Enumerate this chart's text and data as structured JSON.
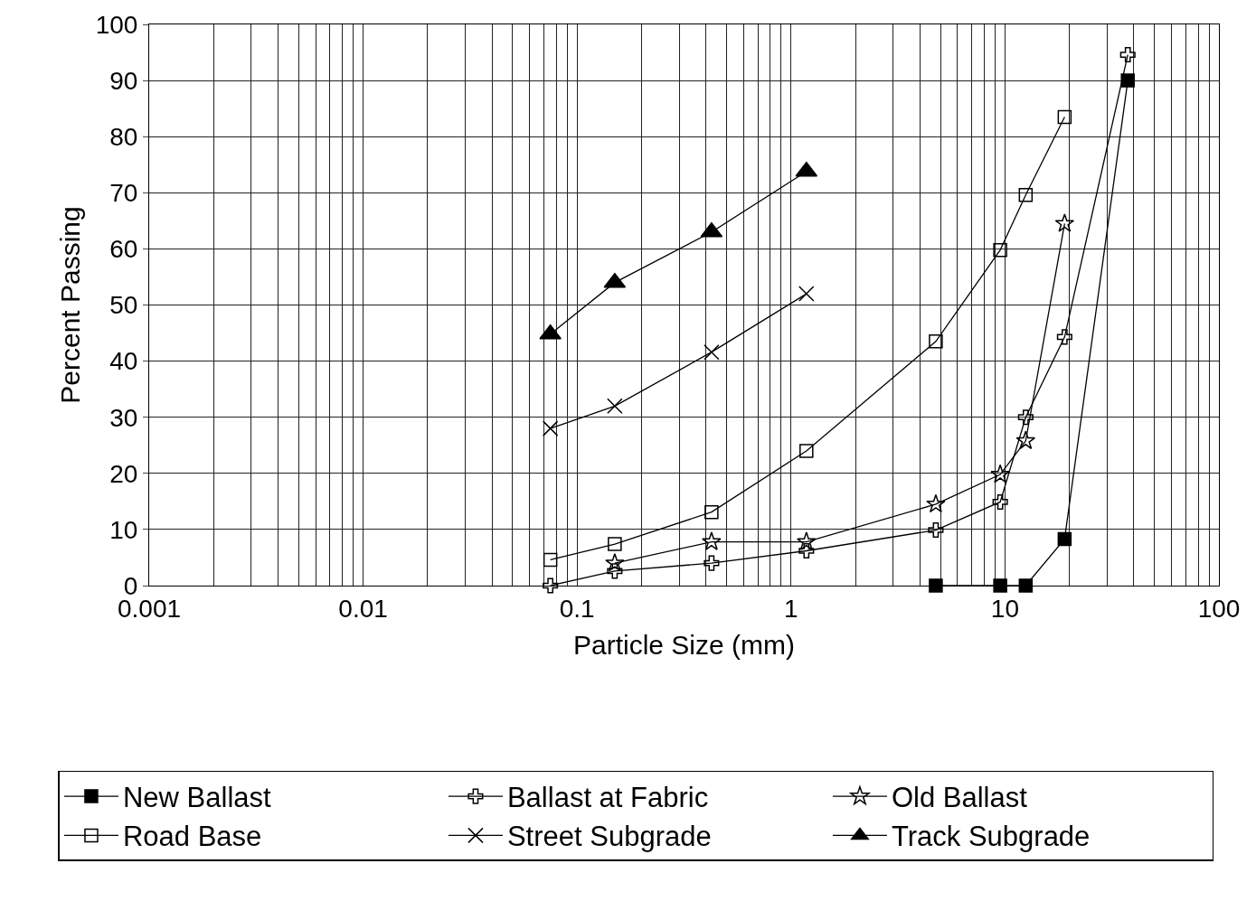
{
  "chart_data": {
    "type": "line",
    "xlabel": "Particle Size (mm)",
    "ylabel": "Percent Passing",
    "log": "x",
    "xlim": [
      0.001,
      100
    ],
    "xticks": [
      0.001,
      0.01,
      0.1,
      1,
      10,
      100
    ],
    "ylim": [
      0,
      100
    ],
    "yticks": [
      0,
      10,
      20,
      30,
      40,
      50,
      60,
      70,
      80,
      90,
      100
    ],
    "grid": true,
    "legend": "bottom",
    "series": [
      {
        "name": "New Ballast",
        "color": "#000000",
        "marker": "square",
        "x": [
          4.75,
          9.5,
          12.5,
          19,
          37.5
        ],
        "values": [
          0,
          0,
          0,
          8.3,
          90
        ]
      },
      {
        "name": "Ballast at Fabric",
        "color": "#000000",
        "marker": "cross",
        "x": [
          0.075,
          0.15,
          0.425,
          1.18,
          4.75,
          9.5,
          12.5,
          19,
          37.5
        ],
        "values": [
          0,
          2.6,
          4,
          6.2,
          9.9,
          14.9,
          30,
          44.3,
          94.6
        ]
      },
      {
        "name": "Old Ballast",
        "color": "#000000",
        "marker": "star",
        "x": [
          0.15,
          0.425,
          1.18,
          4.75,
          9.5,
          12.5,
          19
        ],
        "values": [
          4,
          7.8,
          7.8,
          14.5,
          19.8,
          25.8,
          64.5
        ]
      },
      {
        "name": "Road Base",
        "color": "#000000",
        "marker": "square-open",
        "x": [
          0.075,
          0.15,
          0.425,
          1.18,
          4.75,
          9.5,
          12.5,
          19
        ],
        "values": [
          4.6,
          7.4,
          13.1,
          24,
          43.5,
          59.8,
          69.6,
          83.5
        ]
      },
      {
        "name": "Street Subgrade",
        "color": "#000000",
        "marker": "x",
        "x": [
          0.075,
          0.15,
          0.425,
          1.18
        ],
        "values": [
          28,
          32,
          41.6,
          52
        ]
      },
      {
        "name": "Track Subgrade",
        "color": "#000000",
        "marker": "triangle",
        "x": [
          0.075,
          0.15,
          0.425,
          1.18
        ],
        "values": [
          44.8,
          54,
          63,
          73.8
        ]
      }
    ]
  }
}
